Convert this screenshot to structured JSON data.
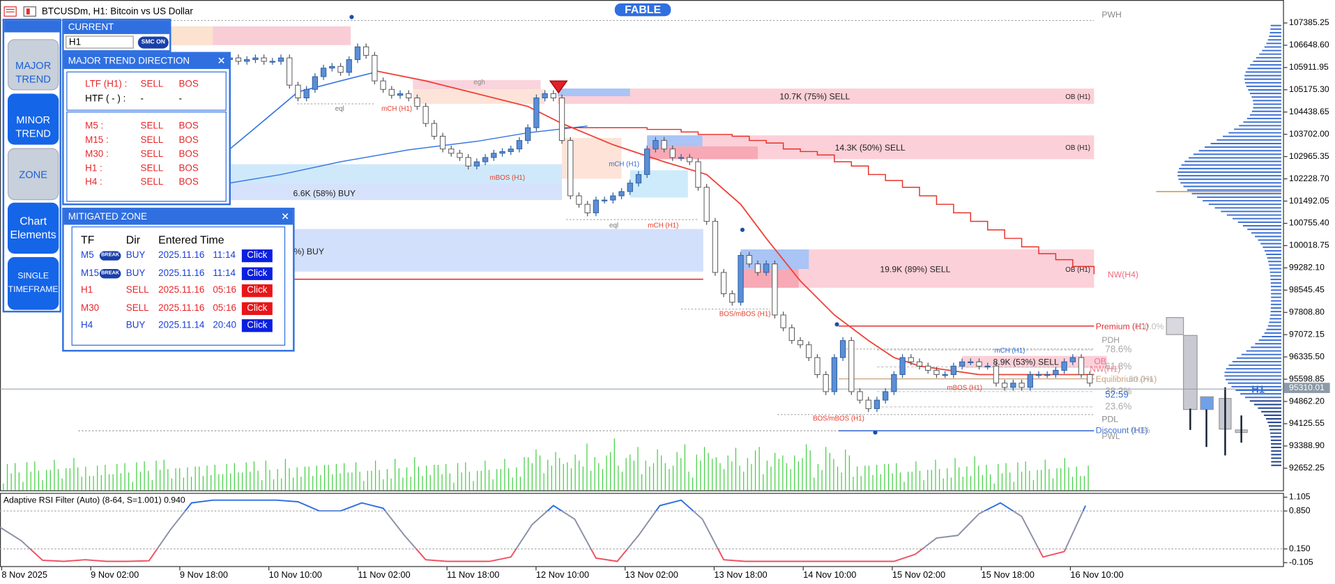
{
  "window": {
    "title": "BTCUSDm, H1:  Bitcoin vs US Dollar",
    "badge": "FABLE"
  },
  "side_menu": {
    "buttons": [
      "MAJOR TREND",
      "MINOR TREND",
      "ZONE",
      "Chart Elements",
      "SINGLE TIMEFRAME"
    ]
  },
  "current_panel": {
    "title": "CURRENT",
    "timeframe": "H1",
    "smc": "SMC ON"
  },
  "trend_panel": {
    "title": "MAJOR TREND DIRECTION",
    "summary": [
      [
        "LTF (H1) :",
        "SELL",
        "BOS"
      ],
      [
        "HTF ( - ) :",
        "-",
        "-"
      ]
    ],
    "rows": [
      [
        "M5 :",
        "SELL",
        "BOS"
      ],
      [
        "M15 :",
        "SELL",
        "BOS"
      ],
      [
        "M30 :",
        "SELL",
        "BOS"
      ],
      [
        "H1 :",
        "SELL",
        "BOS"
      ],
      [
        "H4 :",
        "SELL",
        "BOS"
      ]
    ]
  },
  "mitigated_panel": {
    "title": "MITIGATED ZONE",
    "columns": [
      "TF",
      "Dir",
      "Entered Time"
    ],
    "rows": [
      {
        "tf": "M5",
        "tag": "BREAK",
        "dir": "BUY",
        "date": "2025.11.16",
        "time": "11:14",
        "button": "Click"
      },
      {
        "tf": "M15",
        "tag": "BREAK",
        "dir": "BUY",
        "date": "2025.11.16",
        "time": "11:14",
        "button": "Click"
      },
      {
        "tf": "H1",
        "dir": "SELL",
        "date": "2025.11.16",
        "time": "05:16",
        "button": "Click"
      },
      {
        "tf": "M30",
        "dir": "SELL",
        "date": "2025.11.16",
        "time": "05:16",
        "button": "Click"
      },
      {
        "tf": "H4",
        "dir": "BUY",
        "date": "2025.11.14",
        "time": "20:40",
        "button": "Click"
      }
    ]
  },
  "chart_data": [
    {
      "type": "candlestick",
      "closes": [
        106174,
        106230,
        106117,
        106174,
        106230,
        106117,
        106117,
        106230,
        105329,
        104906,
        105188,
        105610,
        105892,
        105948,
        105751,
        106174,
        106596,
        106315,
        105469,
        105188,
        104991,
        105047,
        104906,
        104624,
        104061,
        103638,
        103216,
        103075,
        102934,
        102652,
        102793,
        102934,
        103075,
        103131,
        103216,
        103498,
        103920,
        104906,
        105047,
        104906,
        103498,
        101666,
        101385,
        101103,
        101526,
        101526,
        101666,
        101807,
        102089,
        102371,
        103216,
        103498,
        103216,
        102934,
        102934,
        102793,
        101948,
        100821,
        99131,
        98427,
        98145,
        99695,
        99413,
        99131,
        99413,
        97723,
        97300,
        96878,
        96737,
        96314,
        95751,
        95187,
        96314,
        96878,
        95187,
        94906,
        94624,
        94906,
        95187,
        95751,
        96314,
        96173,
        96032,
        95892,
        95751,
        95751,
        96032,
        96173,
        96173,
        96032,
        96032,
        95469,
        95328,
        95469,
        95328,
        95751,
        95751,
        95751,
        95892,
        96173,
        96314,
        95751,
        95469
      ],
      "ylim": [
        91920,
        108005
      ],
      "yticks": [
        107385.25,
        {
          "value": 106648.6,
          "label": "106648.60"
        },
        105911.95,
        {
          "value": 105175.3,
          "label": "105175.30"
        },
        104438.65,
        {
          "value": 103702,
          "label": "103702.00"
        },
        102965.35,
        {
          "value": 102228.7,
          "label": "102228.70"
        },
        101492.05,
        {
          "value": 100755.4,
          "label": "100755.40"
        },
        100018.75,
        {
          "value": 99282.1,
          "label": "99282.10"
        },
        98545.45,
        {
          "value": 97808.8,
          "label": "97808.80"
        },
        97072.15,
        {
          "value": 96335.5,
          "label": "96335.50"
        },
        95598.85,
        {
          "value": 94862.2,
          "label": "94862.20"
        },
        94125.55,
        {
          "value": 93388.9,
          "label": "93388.90"
        },
        92652.25
      ],
      "current_price": 95310.01,
      "time_axis": [
        "8 Nov 2025",
        "9 Nov 02:00",
        "9 Nov 18:00",
        "10 Nov 10:00",
        "11 Nov 02:00",
        "11 Nov 18:00",
        "12 Nov 10:00",
        "13 Nov 02:00",
        "13 Nov 18:00",
        "14 Nov 10:00",
        "15 Nov 02:00",
        "15 Nov 18:00",
        "16 Nov 10:00"
      ],
      "annotations": [
        "egh",
        "eql",
        "mCH (H1)",
        "mBOS (H1)",
        "mCH (H1)",
        "eql",
        "mCH (H1)",
        "BOS/mBOS (H1)",
        "BOS/mBOS (H1)",
        "mCH (H1)",
        "mBOS (H1)",
        "10.7K (75%) SELL",
        "OB (H1)",
        "14.3K (50%) SELL",
        "OB (H1)",
        "6.6K (58%) BUY",
        "%) BUY",
        "19.9K (89%) SELL",
        "OB (H1)",
        "NW(H4)",
        "8.9K (53%) SELL",
        "Premium (H1)",
        "100.0%",
        "PDH",
        "78.6%",
        "61.8%",
        "OB",
        "NW(H1)",
        "Equilibrium (H1)",
        "50.0%",
        "38.2%",
        "52:59",
        "23.6%",
        "PDL",
        "Discount (H1)",
        "0.0%",
        "PWL",
        "PWH",
        "H1"
      ]
    },
    {
      "type": "line",
      "title": "Adaptive RSI Filter (Auto) (8-64, S=1.001) 0.940",
      "values": [
        0.55,
        0.3,
        -0.06,
        -0.08,
        -0.05,
        -0.08,
        -0.08,
        -0.07,
        0.5,
        1.0,
        1.05,
        1.05,
        1.05,
        1.05,
        1.02,
        0.85,
        0.85,
        1.0,
        0.9,
        0.4,
        -0.05,
        -0.08,
        -0.08,
        -0.08,
        0.0,
        0.6,
        0.95,
        0.7,
        -0.02,
        -0.08,
        0.4,
        0.95,
        1.05,
        0.7,
        -0.05,
        -0.08,
        -0.08,
        -0.08,
        -0.08,
        -0.08,
        -0.08,
        -0.08,
        -0.08,
        0.05,
        0.35,
        0.4,
        0.8,
        1.0,
        0.75,
        0.0,
        0.1,
        0.95
      ],
      "ylim": [
        -0.184,
        1.168
      ],
      "yticks": [
        1.105,
        {
          "value": 0.85,
          "label": "0.850"
        },
        {
          "value": 0.15,
          "label": "0.150"
        },
        -0.105
      ],
      "color": "#8a90a6"
    }
  ]
}
